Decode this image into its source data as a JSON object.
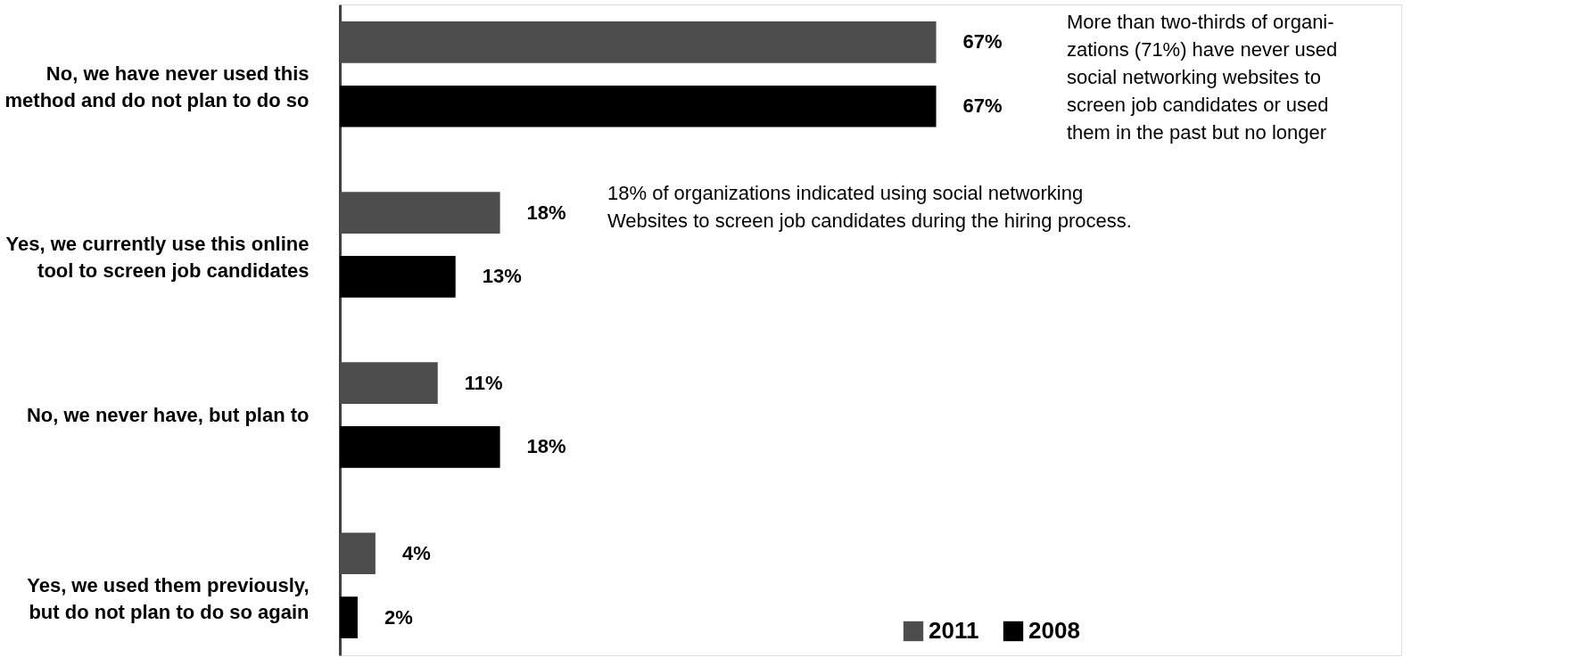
{
  "chart_data": {
    "type": "bar",
    "orientation": "horizontal",
    "categories": [
      "No, we have never used this method and do not plan to do so",
      "Yes, we currently use this online tool to screen job candidates",
      "No, we never have, but plan to",
      "Yes, we used them previously, but do not plan to do so again"
    ],
    "series": [
      {
        "name": "2011",
        "color": "#4d4d4d",
        "values": [
          67,
          18,
          11,
          4
        ],
        "value_labels": [
          "67%",
          "18%",
          "11%",
          "4%"
        ]
      },
      {
        "name": "2008",
        "color": "#000000",
        "values": [
          67,
          13,
          18,
          2
        ],
        "value_labels": [
          "67%",
          "13%",
          "18%",
          "2%"
        ]
      }
    ],
    "legend": "bottom",
    "annotations": [
      "More than two-thirds of organi-\nzations (71%) have never used\nsocial networking websites to\nscreen job candidates or used\nthem in the past but no longer",
      "18% of organizations indicated using social networking\nWebsites to screen job candidates during the hiring process."
    ]
  }
}
